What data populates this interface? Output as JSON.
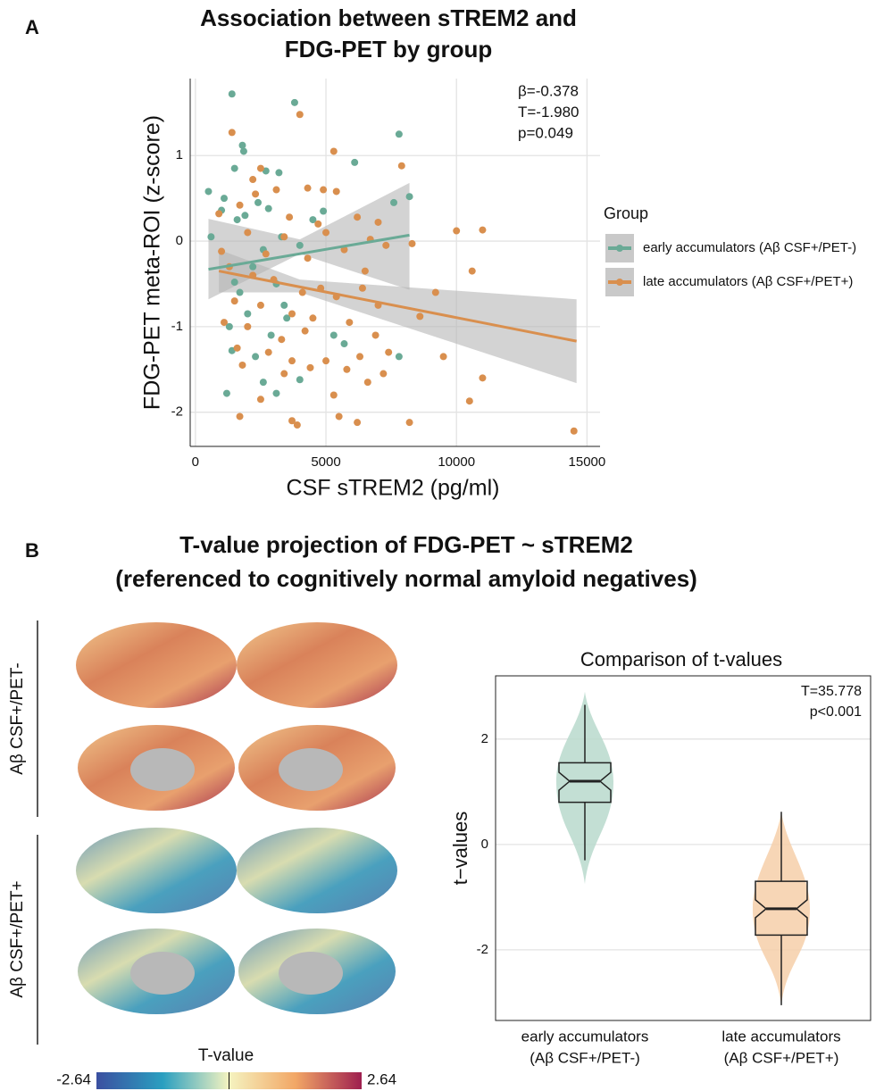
{
  "chart_data": [
    {
      "type": "scatter",
      "panel": "A",
      "title": [
        "Association between sTREM2 and",
        "FDG-PET by group"
      ],
      "x_label": "CSF sTREM2 (pg/ml)",
      "y_label": "FDG-PET meta-ROI (z-score)",
      "xlim": [
        -200,
        15500
      ],
      "ylim": [
        -2.4,
        1.9
      ],
      "xticks": [
        0,
        5000,
        10000,
        15000
      ],
      "yticks": [
        -2,
        -1,
        0,
        1
      ],
      "grid": true,
      "annotations": [
        "β=-0.378",
        "T=-1.980",
        "p=0.049"
      ],
      "legend_title": "Group",
      "legend_position": "right",
      "series": [
        {
          "name": "early accumulators (Aβ CSF+/PET-)",
          "color": "#6aaa96",
          "x": [
            1400,
            3800,
            7800,
            1800,
            1850,
            1500,
            2700,
            3200,
            6100,
            500,
            1100,
            1000,
            2400,
            1900,
            2800,
            1600,
            4500,
            4900,
            8200,
            7600,
            3300,
            2600,
            4000,
            600,
            2200,
            3100,
            1700,
            3400,
            1300,
            2000,
            2900,
            5300,
            5700,
            1400,
            2300,
            7800,
            1200,
            2600,
            3100,
            4000,
            3500,
            1500
          ],
          "values": [
            1.72,
            1.62,
            1.25,
            1.12,
            1.05,
            0.85,
            0.82,
            0.8,
            0.92,
            0.58,
            0.5,
            0.36,
            0.45,
            0.3,
            0.38,
            0.25,
            0.25,
            0.35,
            0.52,
            0.45,
            0.05,
            -0.1,
            -0.05,
            0.05,
            -0.3,
            -0.5,
            -0.6,
            -0.75,
            -1.0,
            -0.85,
            -1.1,
            -1.1,
            -1.2,
            -1.28,
            -1.35,
            -1.35,
            -1.78,
            -1.65,
            -1.78,
            -1.62,
            -0.9,
            -0.48
          ],
          "fit": {
            "x": [
              500,
              8200
            ],
            "values": [
              -0.33,
              0.07
            ],
            "band_x": [
              500,
              4000,
              8200
            ],
            "band_lower": [
              -0.68,
              -0.15,
              -0.57
            ],
            "band_upper": [
              0.26,
              0.02,
              0.68
            ]
          }
        },
        {
          "name": "late accumulators (Aβ CSF+/PET+)",
          "color": "#d98f4e",
          "x": [
            1400,
            4000,
            5300,
            7900,
            2500,
            2200,
            3100,
            4300,
            2300,
            4900,
            5400,
            900,
            1700,
            3600,
            4700,
            6200,
            7000,
            10000,
            11000,
            2000,
            3400,
            5000,
            6700,
            8300,
            1000,
            2700,
            4300,
            5700,
            6500,
            7300,
            10600,
            9200,
            1300,
            2200,
            3000,
            4100,
            4800,
            5400,
            6400,
            8600,
            1500,
            2500,
            3700,
            4500,
            5900,
            7000,
            1100,
            2000,
            3300,
            4200,
            6900,
            1600,
            2800,
            3700,
            5000,
            6300,
            7400,
            9500,
            1800,
            3400,
            4400,
            5800,
            7200,
            11000,
            2500,
            3700,
            3900,
            5500,
            6200,
            8200,
            1700,
            10500,
            14500,
            6600,
            5300
          ],
          "values": [
            1.27,
            1.48,
            1.05,
            0.88,
            0.85,
            0.72,
            0.6,
            0.62,
            0.55,
            0.6,
            0.58,
            0.32,
            0.42,
            0.28,
            0.2,
            0.28,
            0.22,
            0.12,
            0.13,
            0.1,
            0.05,
            0.1,
            0.02,
            -0.03,
            -0.12,
            -0.15,
            -0.2,
            -0.1,
            -0.35,
            -0.05,
            -0.35,
            -0.6,
            -0.3,
            -0.4,
            -0.45,
            -0.6,
            -0.55,
            -0.65,
            -0.55,
            -0.88,
            -0.7,
            -0.75,
            -0.85,
            -0.9,
            -0.95,
            -0.75,
            -0.95,
            -1.0,
            -1.15,
            -1.05,
            -1.1,
            -1.25,
            -1.3,
            -1.4,
            -1.4,
            -1.35,
            -1.3,
            -1.35,
            -1.45,
            -1.55,
            -1.48,
            -1.5,
            -1.55,
            -1.6,
            -1.85,
            -2.1,
            -2.15,
            -2.05,
            -2.12,
            -2.12,
            -2.05,
            -1.87,
            -2.22,
            -1.65,
            -1.8
          ],
          "fit": {
            "x": [
              900,
              14600
            ],
            "values": [
              -0.35,
              -1.17
            ],
            "band_x": [
              900,
              4000,
              14600
            ],
            "band_lower": [
              -0.6,
              -0.6,
              -1.66
            ],
            "band_upper": [
              -0.1,
              -0.45,
              -0.68
            ]
          }
        }
      ]
    },
    {
      "type": "surface-map",
      "panel": "B",
      "title": [
        "T-value projection of FDG-PET ~ sTREM2",
        "(referenced to cognitively normal amyloid negatives)"
      ],
      "rows": [
        "Aβ CSF+/PET-",
        "Aβ CSF+/PET+"
      ],
      "colorbar": {
        "title": "T-value",
        "range": [
          -2.64,
          2.64
        ],
        "ticks": [
          -2.64,
          2.64
        ]
      }
    },
    {
      "type": "violin",
      "title": "Comparison of t-values",
      "y_label": "t−values",
      "ylim": [
        -3.34,
        3.2
      ],
      "yticks": [
        -2,
        0,
        2
      ],
      "grid": true,
      "annotations": [
        "T=35.778",
        "p<0.001"
      ],
      "categories": [
        [
          "early accumulators",
          "(Aβ CSF+/PET-)"
        ],
        [
          "late accumulators",
          "(Aβ CSF+/PET+)"
        ]
      ],
      "colors": [
        "#b9d9cd",
        "#f6cfa9"
      ],
      "min": [
        -0.75,
        -3.05
      ],
      "max": [
        2.9,
        0.62
      ],
      "whisker_low": [
        -0.3,
        -3.05
      ],
      "q1": [
        0.8,
        -1.72
      ],
      "median": [
        1.2,
        -1.22
      ],
      "q3": [
        1.55,
        -0.7
      ],
      "whisker_high": [
        2.65,
        0.62
      ]
    }
  ]
}
